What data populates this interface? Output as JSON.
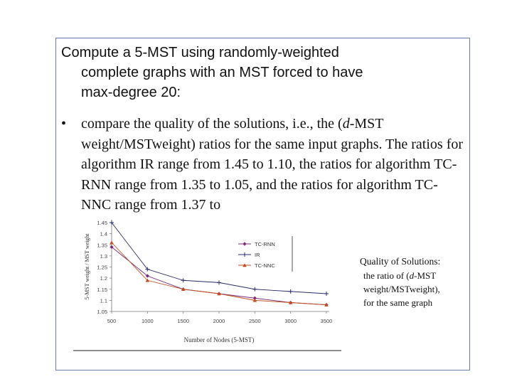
{
  "heading": {
    "line1": "Compute a 5-MST using randomly-weighted",
    "line2": "complete graphs with an MST forced to have",
    "line3": "max-degree 20:"
  },
  "bullet": {
    "symbol": "•",
    "seg1": "compare the quality of the solutions, i.e., the (",
    "seg_italic": "d",
    "seg2": "-MST weight/MSTweight) ratios for the same input graphs. The ratios for algorithm IR range from 1.45 to 1.10, the ratios for algorithm TC-RNN range from 1.35 to 1.05, and the ratios for algorithm TC-NNC range from 1.37 to"
  },
  "caption": {
    "title": "Quality of Solutions:",
    "body_pre": "the ratio of (",
    "body_italic": "d",
    "body_mid": "-MST",
    "body_line2": "weight/MSTweight),",
    "body_line3": "for the same graph"
  },
  "chart_data": {
    "type": "line",
    "xlabel": "Number of Nodes (5-MST)",
    "ylabel": "5-MST weight / MST weight",
    "x": [
      500,
      1000,
      1500,
      2000,
      2500,
      3000,
      3500
    ],
    "xticks": [
      "500",
      "1000",
      "1500",
      "2000",
      "2500",
      "3000",
      "3500"
    ],
    "yticks": [
      "1.05",
      "1.1",
      "1.15",
      "1.2",
      "1.25",
      "1.3",
      "1.35",
      "1.4",
      "1.45"
    ],
    "ylim": [
      1.05,
      1.45
    ],
    "xlim": [
      500,
      3500
    ],
    "legend_position": "top-right",
    "series": [
      {
        "name": "TC-RNN",
        "color": "#7a2a7a",
        "marker": "diamond",
        "values": [
          1.34,
          1.21,
          1.15,
          1.13,
          1.11,
          1.09,
          1.08
        ]
      },
      {
        "name": "IR",
        "color": "#2a2a6a",
        "marker": "plus",
        "values": [
          1.45,
          1.24,
          1.19,
          1.18,
          1.15,
          1.14,
          1.13
        ]
      },
      {
        "name": "TC-NNC",
        "color": "#c05020",
        "marker": "triangle",
        "values": [
          1.36,
          1.19,
          1.15,
          1.13,
          1.1,
          1.09,
          1.08
        ]
      }
    ]
  }
}
